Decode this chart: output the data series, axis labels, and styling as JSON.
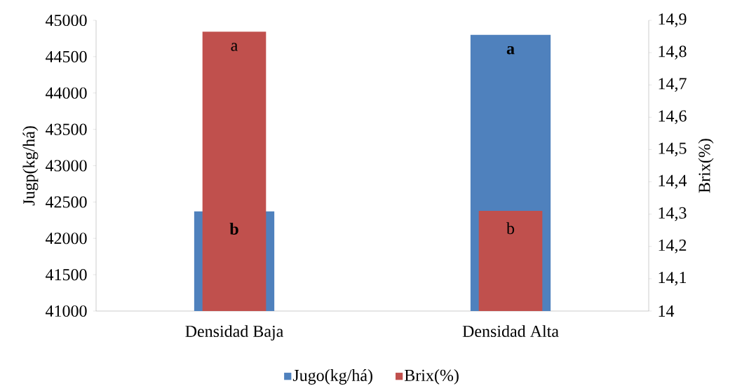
{
  "chart_data": {
    "type": "bar",
    "categories": [
      "Densidad Baja",
      "Densidad Alta"
    ],
    "ylabel": "Jugp(kg/há)",
    "y2label": "Brix(%)",
    "ylim": [
      41000,
      45000
    ],
    "yticks": [
      41000,
      41500,
      42000,
      42500,
      43000,
      43500,
      44000,
      44500,
      45000
    ],
    "y2lim": [
      14,
      14.9
    ],
    "y2ticks": [
      14,
      {
        "value": 14.1,
        "label": "14,1"
      },
      {
        "value": 14.2,
        "label": "14,2"
      },
      {
        "value": 14.3,
        "label": "14,3"
      },
      {
        "value": 14.4,
        "label": "14,4"
      },
      {
        "value": 14.5,
        "label": "14,5"
      },
      {
        "value": 14.6,
        "label": "14,6"
      },
      {
        "value": 14.7,
        "label": "14,7"
      },
      {
        "value": 14.8,
        "label": "14,8"
      },
      {
        "value": 14.9,
        "label": "14,9"
      }
    ],
    "legend": "bottom",
    "series": [
      {
        "name": "Jugo(kg/há)",
        "color": "#4f81bd",
        "values": [
          42370,
          44800
        ],
        "value_labels": [
          "b",
          "a"
        ]
      },
      {
        "name": "Brix(%)",
        "color": "#c0504d",
        "axis": "y2",
        "values": [
          14.865,
          14.31
        ],
        "value_labels": [
          "a",
          "b"
        ]
      }
    ]
  }
}
